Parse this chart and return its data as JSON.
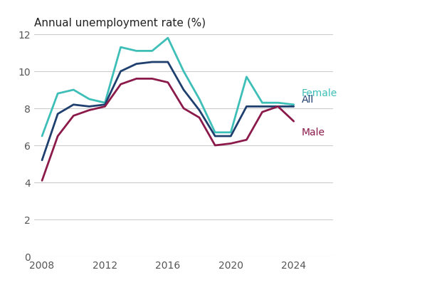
{
  "title": "Annual unemployment rate (%)",
  "years": [
    2008,
    2009,
    2010,
    2011,
    2012,
    2013,
    2014,
    2015,
    2016,
    2017,
    2018,
    2019,
    2020,
    2021,
    2022,
    2023,
    2024
  ],
  "female": [
    6.5,
    8.8,
    9.0,
    8.5,
    8.3,
    11.3,
    11.1,
    11.1,
    11.8,
    10.0,
    8.5,
    6.7,
    6.7,
    9.7,
    8.3,
    8.3,
    8.2
  ],
  "all": [
    5.2,
    7.7,
    8.2,
    8.1,
    8.2,
    10.0,
    10.4,
    10.5,
    10.5,
    9.0,
    7.9,
    6.5,
    6.5,
    8.1,
    8.1,
    8.1,
    8.1
  ],
  "male": [
    4.1,
    6.5,
    7.6,
    7.9,
    8.1,
    9.3,
    9.6,
    9.6,
    9.4,
    8.0,
    7.5,
    6.0,
    6.1,
    6.3,
    7.8,
    8.1,
    7.3
  ],
  "female_color": "#3dbfb8",
  "all_color": "#1f3f6e",
  "male_color": "#8b1a4a",
  "ylim": [
    0,
    12
  ],
  "yticks": [
    0,
    2,
    4,
    6,
    8,
    10,
    12
  ],
  "xlim": [
    2007.5,
    2026.5
  ],
  "xticks": [
    2008,
    2012,
    2016,
    2020,
    2024
  ],
  "background_color": "#ffffff",
  "label_female": "Female",
  "label_all": "All",
  "label_male": "Male",
  "linewidth": 2.0,
  "title_fontsize": 11,
  "tick_fontsize": 10
}
